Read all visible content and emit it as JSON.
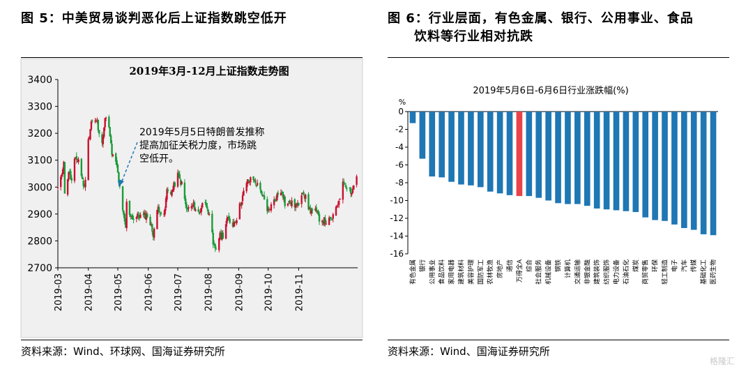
{
  "left": {
    "figure_title": "图 5：中美贸易谈判恶化后上证指数跳空低开",
    "source": "资料来源：Wind、环球网、国海证券研究所",
    "annotation": [
      "2019年5月5日特朗普发推称",
      "提高加征关税力度，市场跳",
      "空低开。"
    ]
  },
  "right": {
    "figure_title_line1": "图 6：行业层面，有色金属、银行、公用事业、食品",
    "figure_title_line2": "饮料等行业相对抗跌",
    "source": "资料来源：Wind、国海证券研究所"
  },
  "watermark": "格隆汇",
  "colors": {
    "up": "#c8102e",
    "down": "#1a9b3a",
    "bar": "#1f77b4",
    "bar_highlight": "#e8434b",
    "annotation": "#1f77b4"
  },
  "chart_data": [
    {
      "type": "candlestick",
      "title": "2019年3月-12月上证指数走势图",
      "ylim": [
        2700,
        3400
      ],
      "yticks": [
        2700,
        2800,
        2900,
        3000,
        3100,
        3200,
        3300,
        3400
      ],
      "x_tick_labels": [
        "2019-03",
        "2019-04",
        "2019-05",
        "2019-06",
        "2019-07",
        "2019-08",
        "2019-09",
        "2019-10",
        "2019-11"
      ],
      "close_points": [
        {
          "date": "2019-03-01",
          "close": 2994
        },
        {
          "date": "2019-03-04",
          "close": 3027
        },
        {
          "date": "2019-03-07",
          "close": 3102
        },
        {
          "date": "2019-03-08",
          "close": 2969
        },
        {
          "date": "2019-03-12",
          "close": 3060
        },
        {
          "date": "2019-03-15",
          "close": 3021
        },
        {
          "date": "2019-03-18",
          "close": 3096
        },
        {
          "date": "2019-03-22",
          "close": 3104
        },
        {
          "date": "2019-03-25",
          "close": 3043
        },
        {
          "date": "2019-03-28",
          "close": 2994
        },
        {
          "date": "2019-04-01",
          "close": 3170
        },
        {
          "date": "2019-04-04",
          "close": 3246
        },
        {
          "date": "2019-04-08",
          "close": 3244
        },
        {
          "date": "2019-04-10",
          "close": 3241
        },
        {
          "date": "2019-04-12",
          "close": 3189
        },
        {
          "date": "2019-04-15",
          "close": 3177
        },
        {
          "date": "2019-04-19",
          "close": 3270
        },
        {
          "date": "2019-04-22",
          "close": 3215
        },
        {
          "date": "2019-04-25",
          "close": 3123
        },
        {
          "date": "2019-04-30",
          "close": 3078
        },
        {
          "date": "2019-05-06",
          "close": 2906
        },
        {
          "date": "2019-05-09",
          "close": 2850
        },
        {
          "date": "2019-05-10",
          "close": 2939
        },
        {
          "date": "2019-05-13",
          "close": 2903
        },
        {
          "date": "2019-05-17",
          "close": 2882
        },
        {
          "date": "2019-05-22",
          "close": 2892
        },
        {
          "date": "2019-05-27",
          "close": 2892
        },
        {
          "date": "2019-05-31",
          "close": 2898
        },
        {
          "date": "2019-06-06",
          "close": 2827
        },
        {
          "date": "2019-06-11",
          "close": 2925
        },
        {
          "date": "2019-06-17",
          "close": 2887
        },
        {
          "date": "2019-06-20",
          "close": 2987
        },
        {
          "date": "2019-06-25",
          "close": 2982
        },
        {
          "date": "2019-07-01",
          "close": 3044
        },
        {
          "date": "2019-07-05",
          "close": 3011
        },
        {
          "date": "2019-07-10",
          "close": 2915
        },
        {
          "date": "2019-07-17",
          "close": 2931
        },
        {
          "date": "2019-07-23",
          "close": 2899
        },
        {
          "date": "2019-07-26",
          "close": 2944
        },
        {
          "date": "2019-07-31",
          "close": 2932
        },
        {
          "date": "2019-08-05",
          "close": 2821
        },
        {
          "date": "2019-08-06",
          "close": 2777
        },
        {
          "date": "2019-08-09",
          "close": 2774
        },
        {
          "date": "2019-08-12",
          "close": 2815
        },
        {
          "date": "2019-08-16",
          "close": 2823
        },
        {
          "date": "2019-08-20",
          "close": 2880
        },
        {
          "date": "2019-08-26",
          "close": 2863
        },
        {
          "date": "2019-08-30",
          "close": 2886
        },
        {
          "date": "2019-09-04",
          "close": 2957
        },
        {
          "date": "2019-09-10",
          "close": 3021
        },
        {
          "date": "2019-09-16",
          "close": 3030
        },
        {
          "date": "2019-09-20",
          "close": 3006
        },
        {
          "date": "2019-09-24",
          "close": 2985
        },
        {
          "date": "2019-09-30",
          "close": 2905
        },
        {
          "date": "2019-10-11",
          "close": 2973
        },
        {
          "date": "2019-10-15",
          "close": 2991
        },
        {
          "date": "2019-10-18",
          "close": 2938
        },
        {
          "date": "2019-10-24",
          "close": 2940
        },
        {
          "date": "2019-10-31",
          "close": 2929
        },
        {
          "date": "2019-11-05",
          "close": 2991
        },
        {
          "date": "2019-11-12",
          "close": 2914
        },
        {
          "date": "2019-11-18",
          "close": 2909
        },
        {
          "date": "2019-11-22",
          "close": 2885
        },
        {
          "date": "2019-11-29",
          "close": 2871
        },
        {
          "date": "2019-12-04",
          "close": 2878
        },
        {
          "date": "2019-12-09",
          "close": 2914
        },
        {
          "date": "2019-12-13",
          "close": 2967
        },
        {
          "date": "2019-12-17",
          "close": 3022
        },
        {
          "date": "2019-12-20",
          "close": 3005
        },
        {
          "date": "2019-12-25",
          "close": 2982
        },
        {
          "date": "2019-12-30",
          "close": 3040
        }
      ]
    },
    {
      "type": "bar",
      "title": "2019年5月6日-6月6日行业涨跌幅(%)",
      "ylabel": "%",
      "ylim": [
        -16,
        0
      ],
      "yticks": [
        0,
        -2,
        -4,
        -6,
        -8,
        -10,
        -12,
        -14,
        -16
      ],
      "categories": [
        "有色金属",
        "银行",
        "公用事业",
        "食品饮料",
        "家用电器",
        "建筑材料",
        "美容护理",
        "国防军工",
        "农林牧渔",
        "房地产",
        "通信",
        "万得全A",
        "综合",
        "社会服务",
        "机械设备",
        "钢铁",
        "计算机",
        "交通运输",
        "非银金融",
        "建筑装饰",
        "纺织服饰",
        "电力设备",
        "石油石化",
        "煤炭",
        "商贸零售",
        "环保",
        "轻工制造",
        "电子",
        "汽车",
        "传媒",
        "基础化工",
        "医药生物"
      ],
      "values": [
        -1.3,
        -5.3,
        -7.3,
        -7.4,
        -7.9,
        -8.2,
        -8.3,
        -8.5,
        -9.0,
        -9.2,
        -9.4,
        -9.5,
        -9.5,
        -9.7,
        -10.0,
        -10.3,
        -10.4,
        -10.4,
        -10.6,
        -10.9,
        -11.0,
        -11.1,
        -11.2,
        -11.3,
        -11.9,
        -12.2,
        -12.3,
        -12.7,
        -13.1,
        -13.3,
        -13.8,
        -13.9
      ],
      "highlight_category": "万得全A"
    }
  ]
}
